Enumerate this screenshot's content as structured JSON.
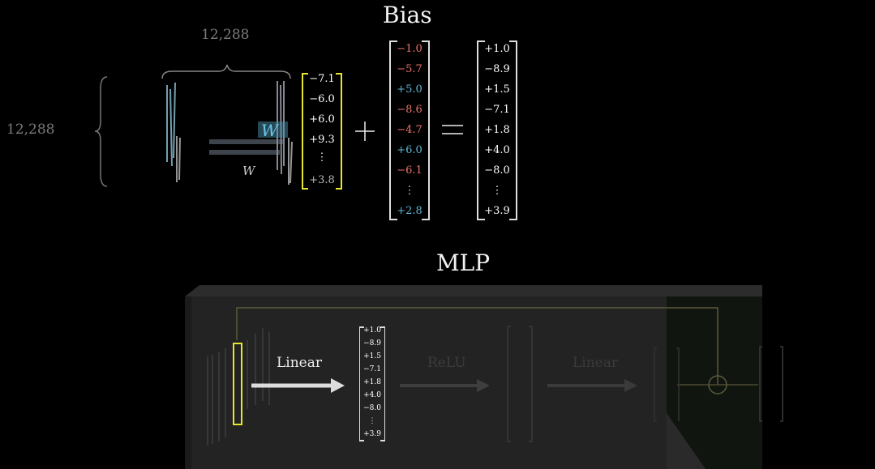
{
  "bias_section": {
    "title": "Bias",
    "matrix_cols_label": "12,288",
    "matrix_rows_label": "12,288",
    "matrix_symbol": "W",
    "matrix_subscript": "↑",
    "input_vector": [
      "−7.1",
      "−6.0",
      "+6.0",
      "+9.3",
      "⋮",
      "+3.8"
    ],
    "plus_symbol": "+",
    "bias_vector": [
      {
        "value": "−1.0",
        "sign": "negative"
      },
      {
        "value": "−5.7",
        "sign": "negative"
      },
      {
        "value": "+5.0",
        "sign": "positive"
      },
      {
        "value": "−8.6",
        "sign": "negative"
      },
      {
        "value": "−4.7",
        "sign": "negative"
      },
      {
        "value": "+6.0",
        "sign": "positive"
      },
      {
        "value": "−6.1",
        "sign": "negative"
      },
      {
        "value": "⋮",
        "sign": "none"
      },
      {
        "value": "+2.8",
        "sign": "positive"
      }
    ],
    "equals_symbol": "=",
    "result_vector": [
      "+1.0",
      "−8.9",
      "+1.5",
      "−7.1",
      "+1.8",
      "+4.0",
      "−8.0",
      "⋮",
      "+3.9"
    ]
  },
  "mlp_section": {
    "title": "MLP",
    "step1_label": "Linear",
    "step2_label": "ReLU",
    "step3_label": "Linear",
    "hidden_vector": [
      "+1.0",
      "−8.9",
      "+1.5",
      "−7.1",
      "+1.8",
      "+4.0",
      "−8.0",
      "⋮",
      "+3.9"
    ],
    "add_symbol": "plus-circle-icon"
  },
  "colors": {
    "negative": "#e8736b",
    "positive": "#5fb8d6",
    "highlight": "#e6e62e",
    "weights": "#8fc6dc"
  }
}
